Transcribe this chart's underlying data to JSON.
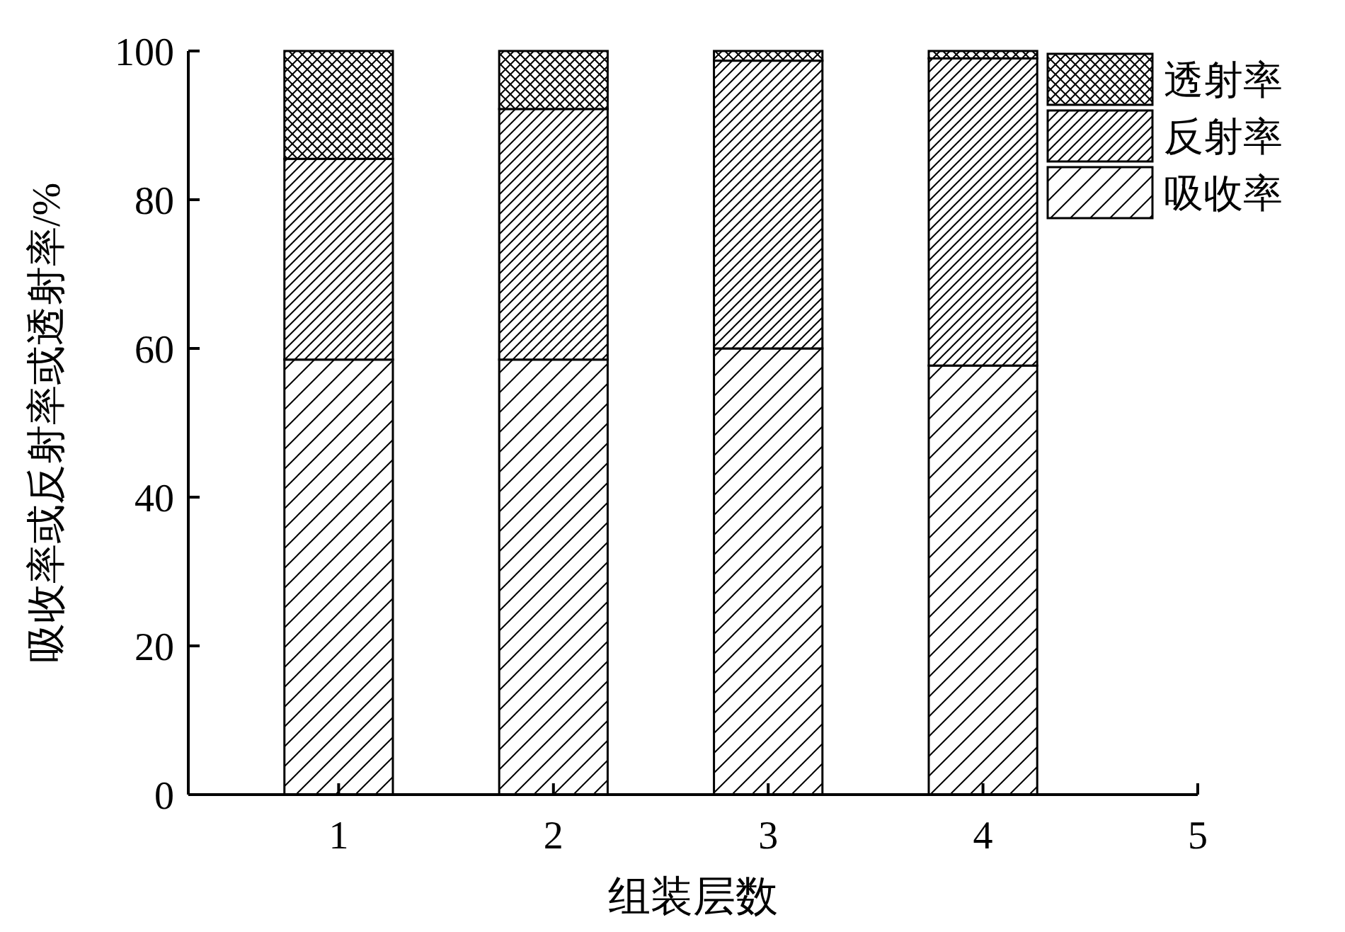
{
  "chart_data": {
    "type": "bar",
    "stacked": true,
    "xlabel": "组装层数",
    "ylabel": "吸收率或反射率或透射率/%",
    "x": [
      1,
      2,
      3,
      4
    ],
    "xlim": [
      0.3,
      5
    ],
    "xticks": [
      1,
      2,
      3,
      4,
      5
    ],
    "ylim": [
      0,
      100
    ],
    "yticks": [
      0,
      20,
      40,
      60,
      80,
      100
    ],
    "grid": false,
    "legend": "top right",
    "series": [
      {
        "name": "吸收率",
        "color": "#000000",
        "values": [
          58.5,
          58.5,
          60.0,
          57.7
        ]
      },
      {
        "name": "反射率",
        "color": "#000000",
        "values": [
          27.0,
          33.7,
          38.7,
          41.3
        ]
      },
      {
        "name": "透射率",
        "color": "#000000",
        "values": [
          14.5,
          7.8,
          1.3,
          1.0
        ]
      }
    ]
  }
}
